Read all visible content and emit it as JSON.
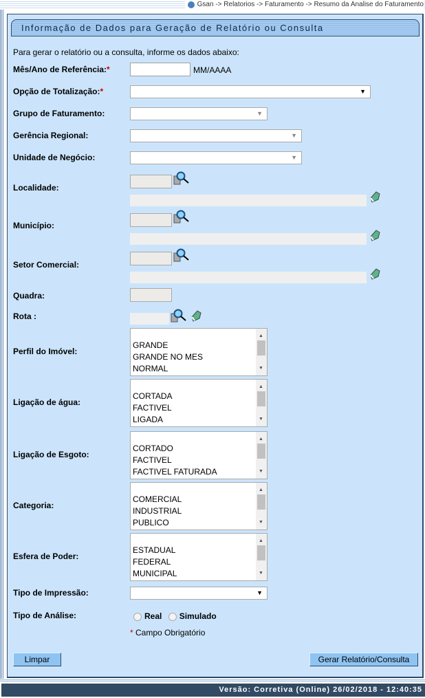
{
  "breadcrumb": "Gsan -> Relatorios -> Faturamento -> Resumo da Analise do Faturamento",
  "title": "Informação de Dados para Geração de Relatório ou Consulta",
  "intro": "Para gerar o relatório ou a consulta, informe os dados abaixo:",
  "fields": {
    "mes_ano": {
      "label": "Mês/Ano de Referência:",
      "required": "*",
      "value": "",
      "hint": "MM/AAAA"
    },
    "opcao_totalizacao": {
      "label": "Opção de Totalização:",
      "required": "*",
      "value": ""
    },
    "grupo_faturamento": {
      "label": "Grupo de Faturamento:",
      "value": ""
    },
    "gerencia_regional": {
      "label": "Gerência Regional:",
      "value": ""
    },
    "unidade_negocio": {
      "label": "Unidade de Negócio:",
      "value": ""
    },
    "localidade": {
      "label": "Localidade:"
    },
    "municipio": {
      "label": "Município:"
    },
    "setor_comercial": {
      "label": "Setor Comercial:"
    },
    "quadra": {
      "label": "Quadra:"
    },
    "rota": {
      "label": "Rota :"
    },
    "perfil_imovel": {
      "label": "Perfil do Imóvel:",
      "options": [
        "GRANDE",
        "GRANDE NO MES",
        "NORMAL"
      ]
    },
    "ligacao_agua": {
      "label": "Ligação de água:",
      "options": [
        "CORTADA",
        "FACTIVEL",
        "LIGADA"
      ]
    },
    "ligacao_esgoto": {
      "label": "Ligação de Esgoto:",
      "options": [
        "CORTADO",
        "FACTIVEL",
        "FACTIVEL FATURADA"
      ]
    },
    "categoria": {
      "label": "Categoria:",
      "options": [
        "COMERCIAL",
        "INDUSTRIAL",
        "PUBLICO"
      ]
    },
    "esfera_poder": {
      "label": "Esfera de Poder:",
      "options": [
        "ESTADUAL",
        "FEDERAL",
        "MUNICIPAL"
      ]
    },
    "tipo_impressao": {
      "label": "Tipo de Impressão:",
      "value": ""
    },
    "tipo_analise": {
      "label": "Tipo de Análise:",
      "options": [
        "Real",
        "Simulado"
      ]
    }
  },
  "required_note": {
    "star": "*",
    "text": "Campo Obrigatório"
  },
  "buttons": {
    "limpar": "Limpar",
    "gerar": "Gerar Relatório/Consulta"
  },
  "footer": "Versão: Corretiva (Online) 26/02/2018 - 12:40:35"
}
